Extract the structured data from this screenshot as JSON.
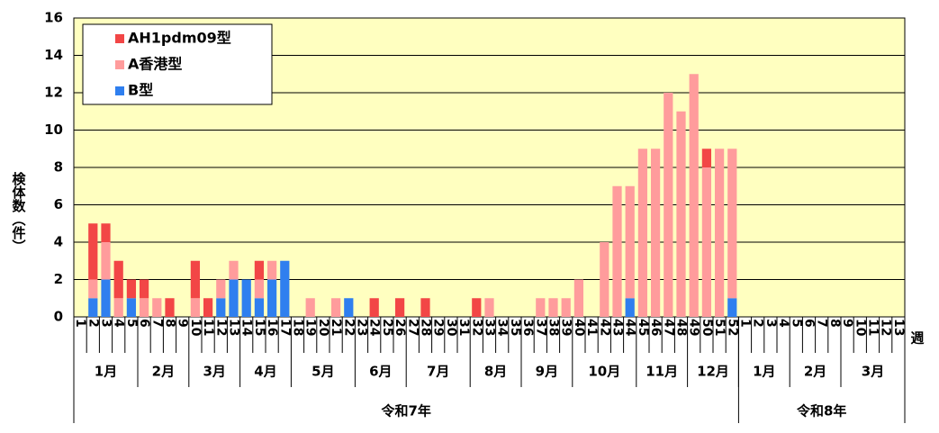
{
  "chart_data": {
    "type": "stacked-bar",
    "y_label": "検体数（件）",
    "x_unit_label": "週",
    "categories": [
      "1",
      "2",
      "3",
      "4",
      "5",
      "6",
      "7",
      "8",
      "9",
      "10",
      "11",
      "12",
      "13",
      "14",
      "15",
      "16",
      "17",
      "18",
      "19",
      "20",
      "21",
      "22",
      "23",
      "24",
      "25",
      "26",
      "27",
      "28",
      "29",
      "30",
      "31",
      "32",
      "33",
      "34",
      "35",
      "36",
      "37",
      "38",
      "39",
      "40",
      "41",
      "42",
      "43",
      "44",
      "45",
      "46",
      "47",
      "48",
      "49",
      "50",
      "51",
      "52",
      "1",
      "2",
      "3",
      "4",
      "5",
      "6",
      "7",
      "8",
      "9",
      "10",
      "11",
      "12",
      "13"
    ],
    "series": [
      {
        "name": "B型",
        "color": "#2f7fef",
        "values": [
          0,
          1,
          2,
          0,
          1,
          0,
          0,
          0,
          0,
          0,
          0,
          1,
          2,
          2,
          1,
          2,
          3,
          0,
          0,
          0,
          0,
          1,
          0,
          0,
          0,
          0,
          0,
          0,
          0,
          0,
          0,
          0,
          0,
          0,
          0,
          0,
          0,
          0,
          0,
          0,
          0,
          0,
          0,
          1,
          0,
          0,
          0,
          0,
          0,
          0,
          0,
          1,
          0,
          0,
          0,
          0,
          0,
          0,
          0,
          0,
          0,
          0,
          0,
          0,
          0
        ]
      },
      {
        "name": "A香港型",
        "color": "#ff9c9c",
        "values": [
          0,
          1,
          2,
          1,
          0,
          1,
          1,
          0,
          0,
          1,
          0,
          1,
          1,
          0,
          1,
          1,
          0,
          0,
          1,
          0,
          1,
          0,
          0,
          0,
          0,
          0,
          0,
          0,
          0,
          0,
          0,
          0,
          1,
          0,
          0,
          0,
          1,
          1,
          1,
          2,
          0,
          4,
          7,
          6,
          9,
          9,
          12,
          11,
          13,
          8,
          9,
          8,
          0,
          0,
          0,
          0,
          0,
          0,
          0,
          0,
          0,
          0,
          0,
          0,
          0
        ]
      },
      {
        "name": "AH1pdm09型",
        "color": "#f24646",
        "values": [
          0,
          3,
          1,
          2,
          1,
          1,
          0,
          1,
          0,
          2,
          1,
          0,
          0,
          0,
          1,
          0,
          0,
          0,
          0,
          0,
          0,
          0,
          0,
          1,
          0,
          1,
          0,
          1,
          0,
          0,
          0,
          1,
          0,
          0,
          0,
          0,
          0,
          0,
          0,
          0,
          0,
          0,
          0,
          0,
          0,
          0,
          0,
          0,
          0,
          1,
          0,
          0,
          0,
          0,
          0,
          0,
          0,
          0,
          0,
          0,
          0,
          0,
          0,
          0,
          0
        ]
      }
    ],
    "month_groups": [
      {
        "label": "1月",
        "weeks": 5
      },
      {
        "label": "2月",
        "weeks": 4
      },
      {
        "label": "3月",
        "weeks": 4
      },
      {
        "label": "4月",
        "weeks": 4
      },
      {
        "label": "5月",
        "weeks": 5
      },
      {
        "label": "6月",
        "weeks": 4
      },
      {
        "label": "7月",
        "weeks": 5
      },
      {
        "label": "8月",
        "weeks": 4
      },
      {
        "label": "9月",
        "weeks": 4
      },
      {
        "label": "10月",
        "weeks": 5
      },
      {
        "label": "11月",
        "weeks": 4
      },
      {
        "label": "12月",
        "weeks": 4
      },
      {
        "label": "1月",
        "weeks": 4
      },
      {
        "label": "2月",
        "weeks": 4
      },
      {
        "label": "3月",
        "weeks": 5
      }
    ],
    "year_groups": [
      {
        "label": "令和7年",
        "weeks": 52
      },
      {
        "label": "令和8年",
        "weeks": 13
      }
    ],
    "ylim": [
      0,
      16
    ],
    "yticks": [
      0,
      2,
      4,
      6,
      8,
      10,
      12,
      14,
      16
    ],
    "grid": true
  }
}
